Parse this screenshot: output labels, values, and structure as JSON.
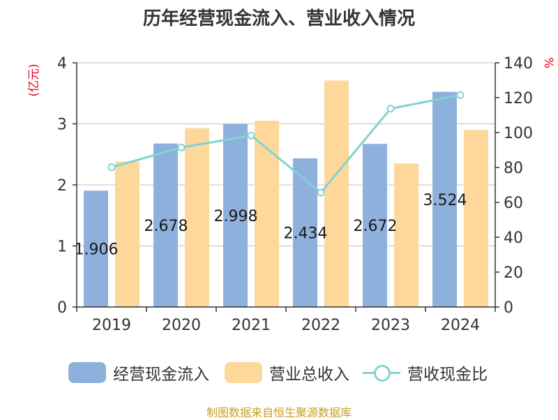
{
  "title": "历年经营现金流入、营业收入情况",
  "footer": "制图数据来自恒生聚源数据库",
  "colors": {
    "cash_inflow": "#8eb0dc",
    "revenue": "#fdd89a",
    "ratio": "#82d2d4",
    "axis_label_red": "#e8001c",
    "footer": "#c8a023",
    "grid": "#cccccc",
    "axis": "#333333"
  },
  "legend": [
    {
      "label": "经营现金流入",
      "kind": "bar",
      "color_key": "cash_inflow"
    },
    {
      "label": "营业总收入",
      "kind": "bar",
      "color_key": "revenue"
    },
    {
      "label": "营收现金比",
      "kind": "line",
      "color_key": "ratio"
    }
  ],
  "chart_data": {
    "type": "bar",
    "categories": [
      "2019",
      "2020",
      "2021",
      "2022",
      "2023",
      "2024"
    ],
    "series": [
      {
        "name": "经营现金流入",
        "type": "bar",
        "axis": "left",
        "values": [
          1.906,
          2.678,
          2.998,
          2.434,
          2.672,
          3.524
        ],
        "labels": [
          "1.906",
          "2.678",
          "2.998",
          "2.434",
          "2.672",
          "3.524"
        ]
      },
      {
        "name": "营业总收入",
        "type": "bar",
        "axis": "left",
        "values": [
          2.38,
          2.93,
          3.05,
          3.71,
          2.35,
          2.9
        ]
      },
      {
        "name": "营收现金比",
        "type": "line",
        "axis": "right",
        "values": [
          80.1,
          91.4,
          98.3,
          65.6,
          113.7,
          121.5
        ]
      }
    ],
    "y_left": {
      "label": "(亿元)",
      "ticks": [
        0,
        1,
        2,
        3,
        4
      ],
      "lim": [
        0,
        4
      ]
    },
    "y_right": {
      "label": "%",
      "ticks": [
        0,
        20,
        40,
        60,
        80,
        100,
        120,
        140
      ],
      "lim": [
        0,
        140
      ]
    },
    "grid": true,
    "legend_position": "bottom"
  }
}
